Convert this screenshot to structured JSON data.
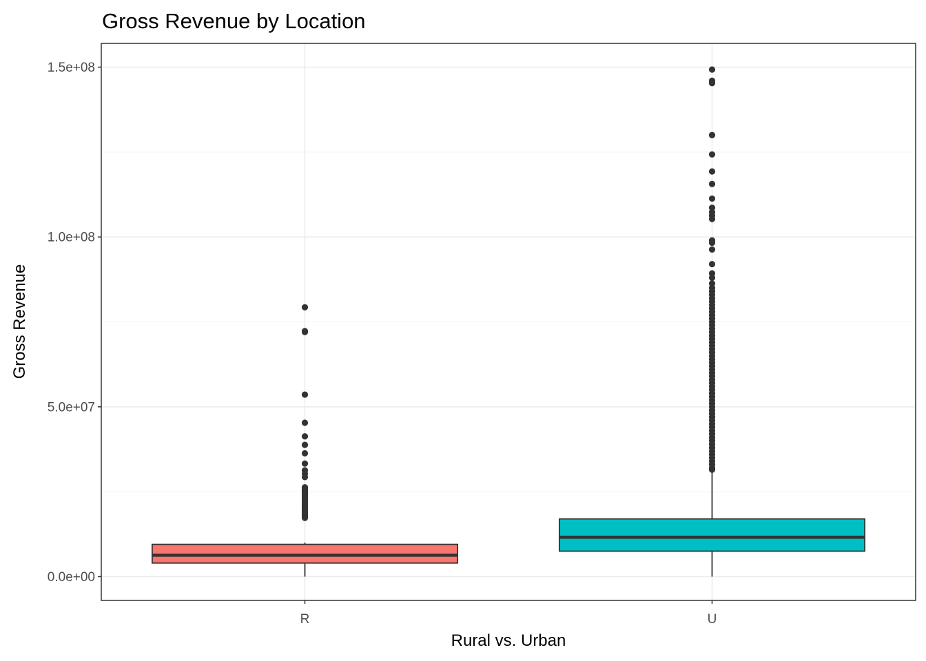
{
  "chart_data": {
    "type": "boxplot",
    "title": "Gross Revenue by Location",
    "xlabel": "Rural vs. Urban",
    "ylabel": "Gross Revenue",
    "ylim": [
      -7000000,
      157000000
    ],
    "y_ticks": [
      0,
      50000000,
      100000000,
      150000000
    ],
    "y_tick_labels": [
      "0.0e+00",
      "5.0e+07",
      "1.0e+08",
      "1.5e+08"
    ],
    "y_minor_ticks": [
      25000000,
      75000000,
      125000000
    ],
    "grid": true,
    "categories": [
      "R",
      "U"
    ],
    "series": [
      {
        "category": "R",
        "color": "#F8766D",
        "whisker_low": 0,
        "q1": 4000000,
        "median": 6300000,
        "q3": 9500000,
        "whisker_high": 10000000,
        "outliers": [
          79300000,
          72300000,
          72000000,
          53600000,
          45300000,
          41300000,
          38800000,
          36300000,
          33300000,
          31300000,
          30300000,
          29300000,
          26300000,
          25800000,
          25300000,
          24800000,
          24300000,
          23800000,
          23300000,
          22800000,
          22300000,
          21800000,
          21300000,
          20800000,
          20300000,
          19800000,
          19300000,
          18800000,
          18300000,
          17800000,
          17300000
        ]
      },
      {
        "category": "U",
        "color": "#00BFC4",
        "whisker_low": 0,
        "q1": 7500000,
        "median": 11600000,
        "q3": 17000000,
        "whisker_high": 31000000,
        "outliers": [
          149300000,
          146000000,
          145300000,
          130000000,
          124300000,
          119300000,
          115600000,
          111300000,
          108600000,
          107300000,
          106300000,
          105300000,
          99000000,
          98300000,
          96300000,
          92000000,
          89300000,
          88000000,
          86300000,
          85000000,
          84000000,
          83000000,
          82000000,
          81000000,
          80000000,
          79000000,
          78000000,
          77000000,
          76000000,
          75000000,
          74000000,
          73000000,
          72000000,
          71000000,
          70000000,
          69000000,
          68000000,
          67000000,
          66000000,
          65000000,
          64000000,
          63000000,
          62000000,
          61000000,
          60000000,
          59000000,
          58000000,
          57000000,
          56000000,
          55000000,
          54000000,
          53000000,
          52000000,
          51000000,
          50000000,
          49000000,
          48000000,
          47000000,
          46000000,
          45000000,
          44000000,
          43000000,
          42000000,
          41000000,
          40000000,
          39000000,
          38000000,
          37000000,
          36000000,
          35000000,
          34000000,
          33000000,
          32000000,
          31500000
        ]
      }
    ],
    "colors": {
      "panel_border": "#333333",
      "grid_major": "#ebebeb",
      "grid_minor": "#f3f3f3",
      "outlier": "#333333",
      "box_stroke": "#333333"
    }
  }
}
